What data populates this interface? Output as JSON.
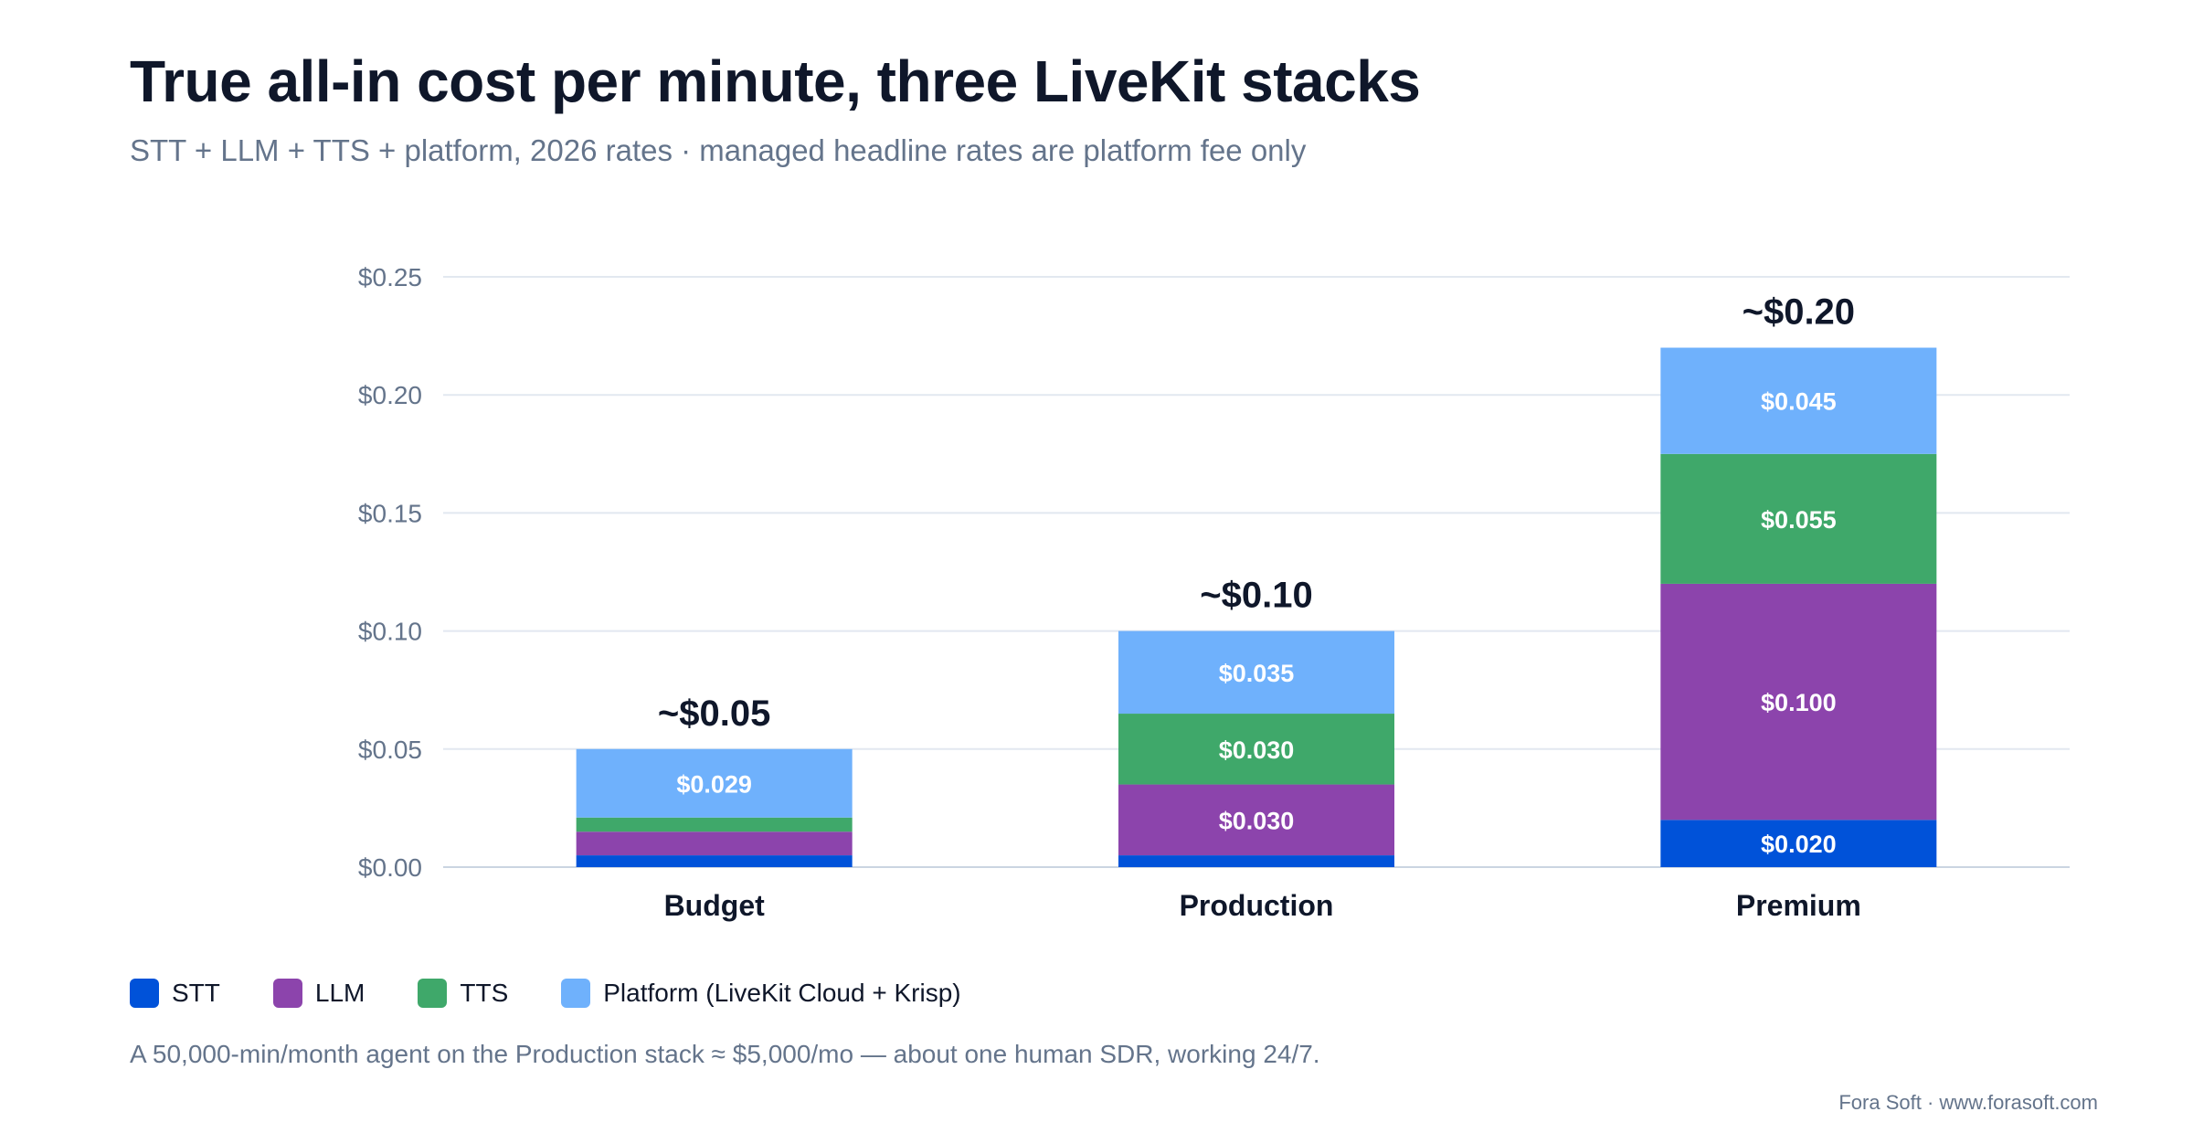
{
  "header": {
    "title": "True all-in cost per minute, three LiveKit stacks",
    "subtitle": "STT + LLM + TTS + platform, 2026 rates · managed headline rates are platform fee only"
  },
  "chart_data": {
    "type": "bar",
    "stacked": true,
    "categories": [
      "Budget",
      "Production",
      "Premium"
    ],
    "series": [
      {
        "name": "STT",
        "color": "#0052d9",
        "values": [
          0.005,
          0.005,
          0.02
        ],
        "labels": [
          "",
          "",
          "$0.020"
        ]
      },
      {
        "name": "LLM",
        "color": "#8c44ac",
        "values": [
          0.01,
          0.03,
          0.1
        ],
        "labels": [
          "",
          "$0.030",
          "$0.100"
        ]
      },
      {
        "name": "TTS",
        "color": "#3fa86a",
        "values": [
          0.006,
          0.03,
          0.055
        ],
        "labels": [
          "",
          "$0.030",
          "$0.055"
        ]
      },
      {
        "name": "Platform (LiveKit Cloud + Krisp)",
        "color": "#6fb1fc",
        "values": [
          0.029,
          0.035,
          0.045
        ],
        "labels": [
          "$0.029",
          "$0.035",
          "$0.045"
        ]
      }
    ],
    "totals_labels": [
      "~$0.05",
      "~$0.10",
      "~$0.20"
    ],
    "ylim": [
      0,
      0.25
    ],
    "yticks": [
      0,
      0.05,
      0.1,
      0.15,
      0.2,
      0.25
    ],
    "ytick_labels": [
      "$0.00",
      "$0.05",
      "$0.10",
      "$0.15",
      "$0.20",
      "$0.25"
    ],
    "grid": true,
    "legend_position": "bottom-left"
  },
  "footer": {
    "note": "A 50,000-min/month agent on the Production stack ≈ $5,000/mo — about one human SDR, working 24/7.",
    "credit": "Fora Soft · www.forasoft.com"
  }
}
